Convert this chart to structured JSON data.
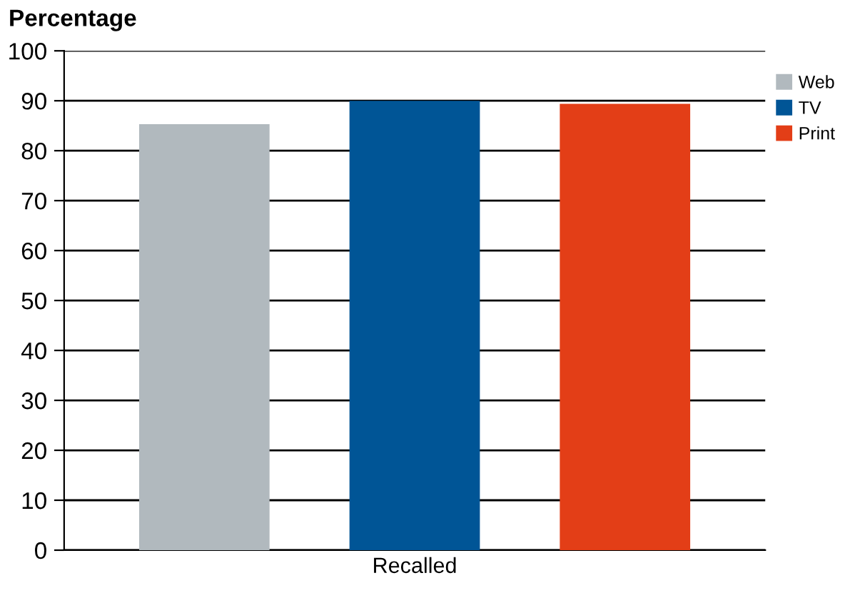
{
  "chart_data": {
    "type": "bar",
    "ylabel": "Percentage",
    "categories": [
      "Recalled"
    ],
    "series": [
      {
        "name": "Web",
        "color": "#b1b9be",
        "values": [
          85.3
        ]
      },
      {
        "name": "TV",
        "color": "#005596",
        "values": [
          90
        ]
      },
      {
        "name": "Print",
        "color": "#e33e17",
        "values": [
          89.4
        ]
      }
    ],
    "ylim": [
      0,
      100
    ],
    "yticks": [
      0,
      10,
      20,
      30,
      40,
      50,
      60,
      70,
      80,
      90,
      100
    ],
    "grid": "y",
    "legend": "top right"
  }
}
